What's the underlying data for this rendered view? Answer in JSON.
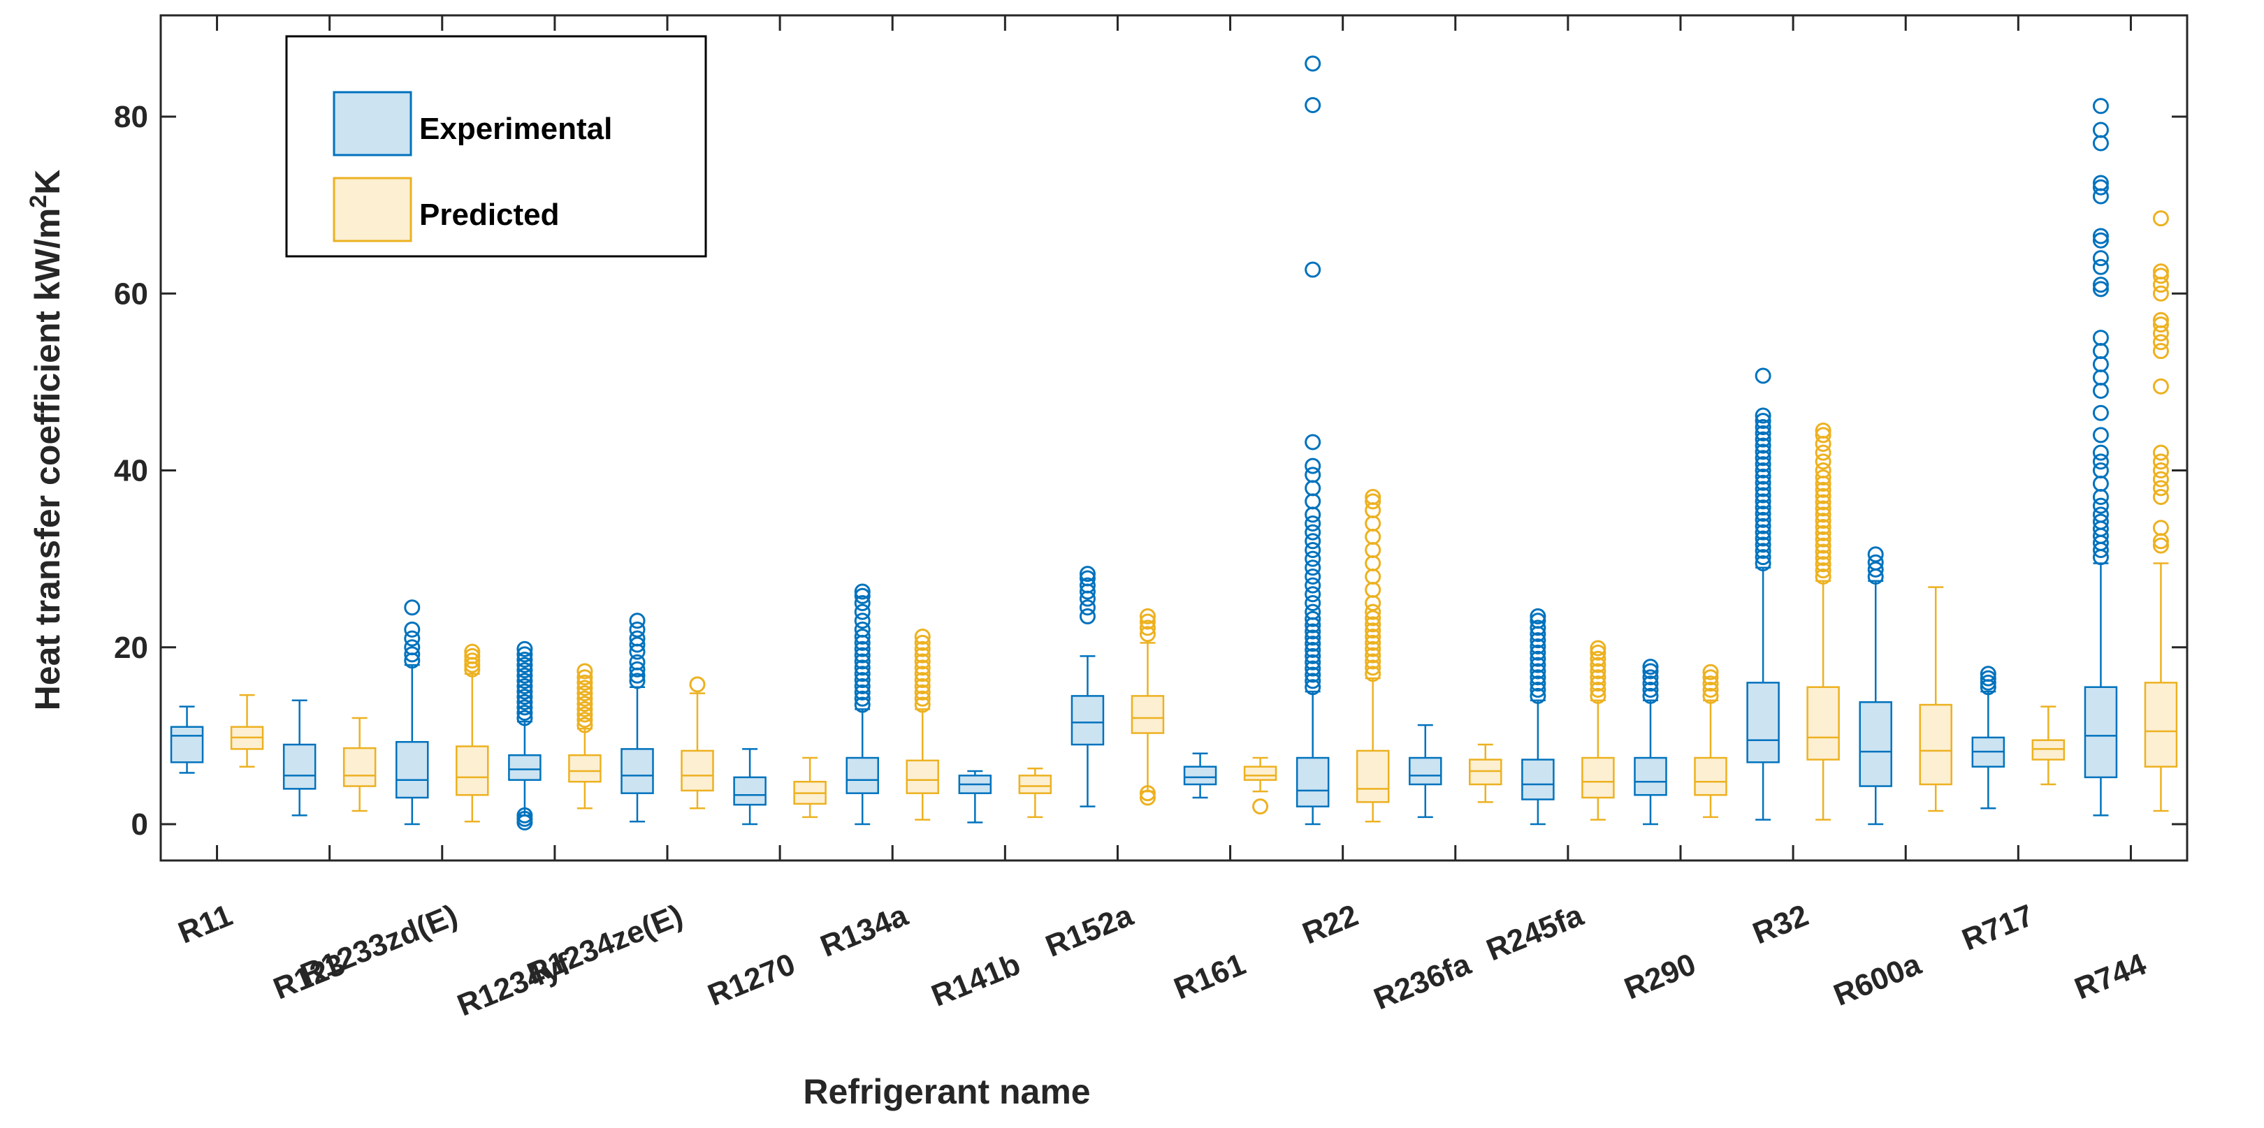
{
  "chart_data": {
    "type": "box",
    "title": "",
    "xlabel": "Refrigerant name",
    "ylabel": "Heat transfer coefficient kW/m",
    "ylabel_sup": "2",
    "ylabel_tail": "K",
    "ylim": [
      -4,
      90
    ],
    "yticks": [
      0,
      20,
      40,
      60,
      80
    ],
    "ytick_labels": [
      "0",
      "20",
      "40",
      "60",
      "80"
    ],
    "grid": false,
    "legend_position": "top-left",
    "colors": {
      "experimental": "#0072BD",
      "experimental_fill": "#CCE3F2",
      "predicted": "#EDB120",
      "predicted_fill": "#FCEFD2",
      "axis": "#262626"
    },
    "categories": [
      "R11",
      "R123",
      "R1233zd(E)",
      "R1234yf",
      "R1234ze(E)",
      "R1270",
      "R134a",
      "R141b",
      "R152a",
      "R161",
      "R22",
      "R236fa",
      "R245fa",
      "R290",
      "R32",
      "R600a",
      "R717",
      "R744"
    ],
    "series": [
      {
        "name": "Experimental",
        "key": "experimental",
        "boxes": [
          {
            "min": 5.8,
            "q1": 7,
            "median": 10,
            "q3": 11,
            "max": 13.3,
            "outliers": []
          },
          {
            "min": 1,
            "q1": 4,
            "median": 5.5,
            "q3": 9,
            "max": 14,
            "outliers": []
          },
          {
            "min": 0,
            "q1": 3,
            "median": 5,
            "q3": 9.3,
            "max": 18,
            "outliers": [
              18.5,
              19.2,
              20,
              21,
              22,
              24.5
            ]
          },
          {
            "min": 1,
            "q1": 5,
            "median": 6.2,
            "q3": 7.8,
            "max": 11.6,
            "outliers": [
              0.2,
              0.6,
              1,
              12,
              12.6,
              13.2,
              13.8,
              14.4,
              15,
              15.6,
              16.2,
              16.8,
              17.4,
              18,
              18.6,
              19.2,
              19.8
            ]
          },
          {
            "min": 0.3,
            "q1": 3.5,
            "median": 5.5,
            "q3": 8.5,
            "max": 15.5,
            "outliers": [
              16.2,
              16.8,
              17.5,
              18.3,
              19.5,
              20.3,
              21,
              22,
              23
            ]
          },
          {
            "min": 0,
            "q1": 2.2,
            "median": 3.3,
            "q3": 5.3,
            "max": 8.5,
            "outliers": []
          },
          {
            "min": 0,
            "q1": 3.5,
            "median": 5,
            "q3": 7.5,
            "max": 13,
            "outliers": [
              13.5,
              14.2,
              14.9,
              15.6,
              16.3,
              17,
              17.7,
              18.4,
              19.1,
              19.8,
              20.5,
              21.2,
              22,
              23,
              24,
              25,
              25.8,
              26.3
            ]
          },
          {
            "min": 0.2,
            "q1": 3.5,
            "median": 4.5,
            "q3": 5.5,
            "max": 6,
            "outliers": []
          },
          {
            "min": 2,
            "q1": 9,
            "median": 11.5,
            "q3": 14.5,
            "max": 19,
            "outliers": [
              23.5,
              24.5,
              25.5,
              26.3,
              27,
              27.8,
              28.3
            ]
          },
          {
            "min": 3,
            "q1": 4.5,
            "median": 5.3,
            "q3": 6.5,
            "max": 8,
            "outliers": []
          },
          {
            "min": 0,
            "q1": 2,
            "median": 3.8,
            "q3": 7.5,
            "max": 15,
            "outliers": [
              15.5,
              16.2,
              16.9,
              17.6,
              18.3,
              19,
              19.7,
              20.4,
              21.1,
              21.8,
              22.5,
              23.2,
              24,
              25,
              26,
              27,
              28,
              29,
              30,
              31,
              32,
              33,
              34,
              35,
              36.5,
              38,
              39.5,
              40.5,
              43.2,
              62.7,
              81.3,
              86
            ]
          },
          {
            "min": 0.8,
            "q1": 4.5,
            "median": 5.5,
            "q3": 7.5,
            "max": 11.2,
            "outliers": []
          },
          {
            "min": 0,
            "q1": 2.8,
            "median": 4.5,
            "q3": 7.3,
            "max": 14,
            "outliers": [
              14.5,
              15.2,
              15.9,
              16.6,
              17.3,
              18,
              18.7,
              19.4,
              20.1,
              20.8,
              21.5,
              22.2,
              23,
              23.5
            ]
          },
          {
            "min": 0,
            "q1": 3.3,
            "median": 4.8,
            "q3": 7.5,
            "max": 14,
            "outliers": [
              14.5,
              15.2,
              15.9,
              16.6,
              17.3,
              17.8
            ]
          },
          {
            "min": 0.5,
            "q1": 7,
            "median": 9.5,
            "q3": 16,
            "max": 29,
            "outliers": [
              29.5,
              30.2,
              30.9,
              31.6,
              32.3,
              33,
              33.7,
              34.4,
              35.1,
              35.8,
              36.5,
              37.2,
              37.9,
              38.6,
              39.3,
              40,
              40.7,
              41.4,
              42.1,
              42.8,
              43.5,
              44.2,
              44.9,
              45.6,
              46.2,
              50.7
            ]
          },
          {
            "min": 0,
            "q1": 4.3,
            "median": 8.2,
            "q3": 13.8,
            "max": 27.5,
            "outliers": [
              28,
              28.8,
              29.6,
              30.5
            ]
          },
          {
            "min": 1.8,
            "q1": 6.5,
            "median": 8.2,
            "q3": 9.8,
            "max": 15,
            "outliers": [
              15.5,
              16,
              16.5,
              17
            ]
          },
          {
            "min": 1,
            "q1": 5.3,
            "median": 10,
            "q3": 15.5,
            "max": 29.5,
            "outliers": [
              30.2,
              31,
              31.8,
              32.6,
              33.4,
              34.2,
              35,
              36,
              37,
              38.5,
              40,
              41,
              42,
              44,
              46.5,
              49,
              50.5,
              52,
              53.5,
              55,
              60.5,
              61,
              63,
              64,
              66,
              66.5,
              71,
              72,
              72.5,
              77,
              78.5,
              81.2
            ]
          }
        ]
      },
      {
        "name": "Predicted",
        "key": "predicted",
        "boxes": [
          {
            "min": 6.5,
            "q1": 8.5,
            "median": 9.8,
            "q3": 11,
            "max": 14.6,
            "outliers": []
          },
          {
            "min": 1.5,
            "q1": 4.3,
            "median": 5.5,
            "q3": 8.6,
            "max": 12,
            "outliers": []
          },
          {
            "min": 0.3,
            "q1": 3.3,
            "median": 5.3,
            "q3": 8.8,
            "max": 17,
            "outliers": [
              17.5,
              18,
              18.5,
              19,
              19.5
            ]
          },
          {
            "min": 1.8,
            "q1": 4.8,
            "median": 6,
            "q3": 7.8,
            "max": 10.8,
            "outliers": [
              11.2,
              11.8,
              12.4,
              13,
              13.6,
              14.2,
              14.8,
              15.4,
              16,
              16.6,
              17.3
            ]
          },
          {
            "min": 1.8,
            "q1": 3.8,
            "median": 5.5,
            "q3": 8.3,
            "max": 14.8,
            "outliers": [
              15.8
            ]
          },
          {
            "min": 0.8,
            "q1": 2.3,
            "median": 3.5,
            "q3": 4.8,
            "max": 7.5,
            "outliers": []
          },
          {
            "min": 0.5,
            "q1": 3.5,
            "median": 5,
            "q3": 7.2,
            "max": 13,
            "outliers": [
              13.5,
              14.2,
              14.9,
              15.6,
              16.3,
              17,
              17.7,
              18.4,
              19.1,
              19.8,
              20.5,
              21.2
            ]
          },
          {
            "min": 0.8,
            "q1": 3.5,
            "median": 4.3,
            "q3": 5.5,
            "max": 6.3,
            "outliers": []
          },
          {
            "min": 3.7,
            "q1": 10.3,
            "median": 12,
            "q3": 14.5,
            "max": 20.5,
            "outliers": [
              3,
              3.5,
              21.5,
              22.2,
              22.9,
              23.5
            ]
          },
          {
            "min": 3.7,
            "q1": 5,
            "median": 5.5,
            "q3": 6.5,
            "max": 7.5,
            "outliers": [
              2
            ]
          },
          {
            "min": 0.3,
            "q1": 2.5,
            "median": 4,
            "q3": 8.3,
            "max": 16.5,
            "outliers": [
              17,
              17.7,
              18.4,
              19.1,
              19.8,
              20.5,
              21.2,
              21.9,
              22.6,
              23.3,
              24,
              25,
              26.5,
              28,
              29.5,
              31,
              32.5,
              34,
              35.5,
              36.5,
              37
            ]
          },
          {
            "min": 2.5,
            "q1": 4.5,
            "median": 6,
            "q3": 7.3,
            "max": 9,
            "outliers": []
          },
          {
            "min": 0.5,
            "q1": 3,
            "median": 4.8,
            "q3": 7.5,
            "max": 14,
            "outliers": [
              14.5,
              15.2,
              15.9,
              16.6,
              17.3,
              18,
              18.7,
              19.4,
              19.9
            ]
          },
          {
            "min": 0.8,
            "q1": 3.3,
            "median": 4.8,
            "q3": 7.5,
            "max": 14,
            "outliers": [
              14.5,
              15.2,
              15.9,
              16.6,
              17.2
            ]
          },
          {
            "min": 0.5,
            "q1": 7.3,
            "median": 9.8,
            "q3": 15.5,
            "max": 27.5,
            "outliers": [
              28,
              28.7,
              29.4,
              30.1,
              30.8,
              31.5,
              32.2,
              32.9,
              33.6,
              34.3,
              35,
              35.7,
              36.4,
              37.1,
              37.8,
              38.5,
              39.2,
              40,
              41,
              42,
              43,
              44,
              44.5
            ]
          },
          {
            "min": 1.5,
            "q1": 4.5,
            "median": 8.3,
            "q3": 13.5,
            "max": 26.8,
            "outliers": []
          },
          {
            "min": 4.5,
            "q1": 7.3,
            "median": 8.5,
            "q3": 9.5,
            "max": 13.3,
            "outliers": []
          },
          {
            "min": 1.5,
            "q1": 6.5,
            "median": 10.5,
            "q3": 16,
            "max": 29.5,
            "outliers": [
              31.5,
              32,
              33.5,
              37,
              38,
              39,
              40,
              41,
              42,
              49.5,
              53.5,
              54.5,
              55.5,
              56.5,
              57,
              60,
              61,
              62,
              62.5,
              68.5
            ]
          }
        ]
      }
    ],
    "legend": [
      "Experimental",
      "Predicted"
    ]
  }
}
